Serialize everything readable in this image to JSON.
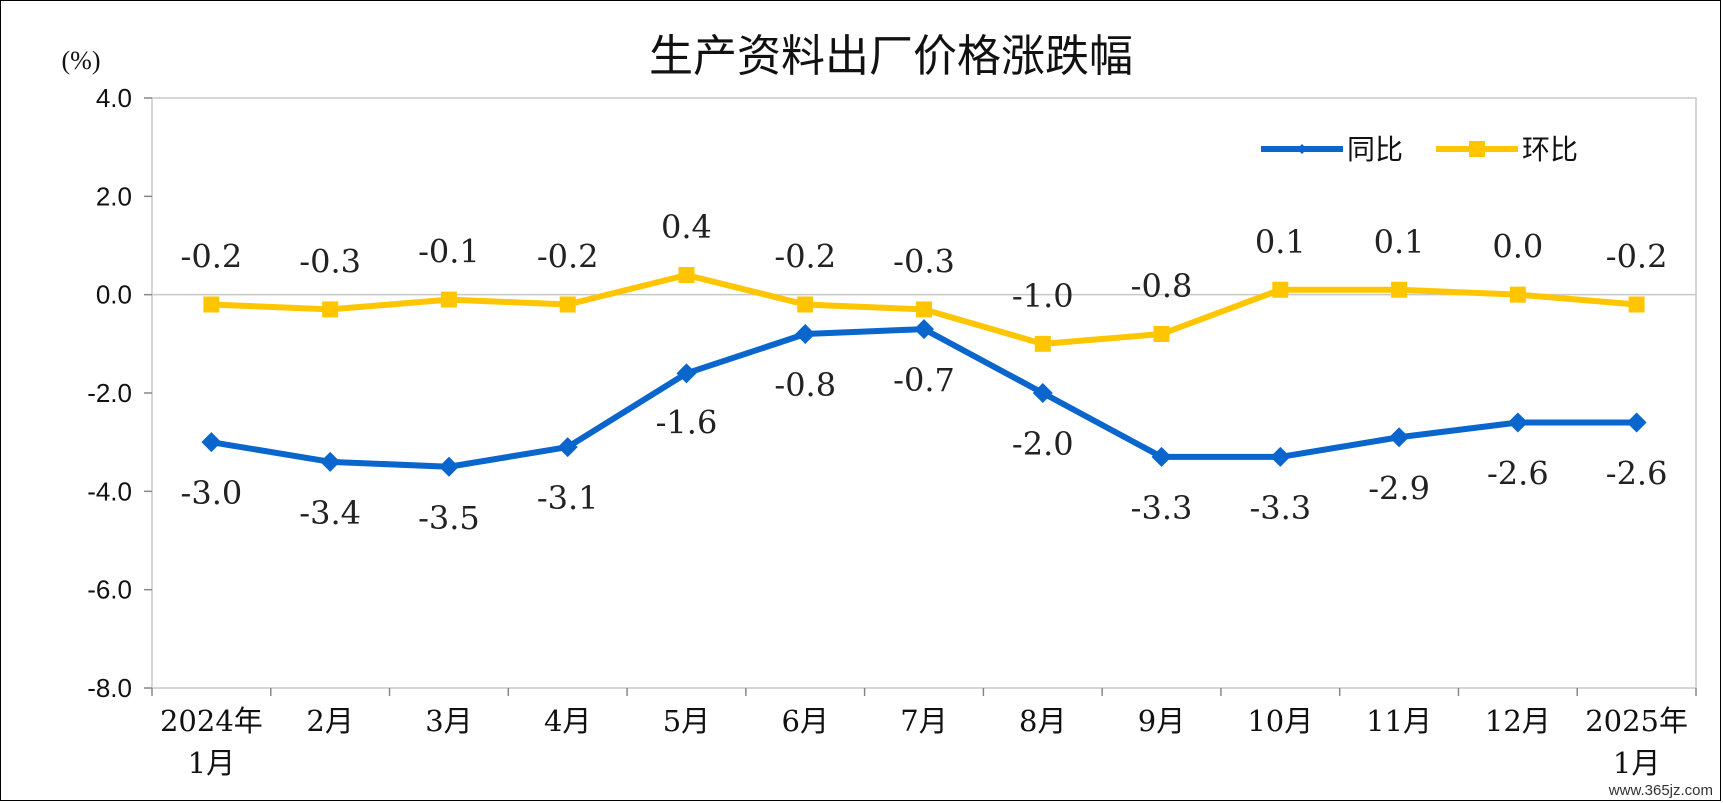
{
  "chart_data": {
    "type": "line",
    "title": "生产资料出厂价格涨跌幅",
    "ylabel": "(%)",
    "ylim": [
      -8.0,
      4.0
    ],
    "yticks": [
      "4.0",
      "2.0",
      "0.0",
      "-2.0",
      "-4.0",
      "-6.0",
      "-8.0"
    ],
    "categories": [
      [
        "2024年",
        "1月"
      ],
      [
        "2月"
      ],
      [
        "3月"
      ],
      [
        "4月"
      ],
      [
        "5月"
      ],
      [
        "6月"
      ],
      [
        "7月"
      ],
      [
        "8月"
      ],
      [
        "9月"
      ],
      [
        "10月"
      ],
      [
        "11月"
      ],
      [
        "12月"
      ],
      [
        "2025年",
        "1月"
      ]
    ],
    "series": [
      {
        "name": "同比",
        "color": "#0A66CC",
        "marker": "diamond",
        "values": [
          -3.0,
          -3.4,
          -3.5,
          -3.1,
          -1.6,
          -0.8,
          -0.7,
          -2.0,
          -3.3,
          -3.3,
          -2.9,
          -2.6,
          -2.6
        ],
        "labels": [
          "-3.0",
          "-3.4",
          "-3.5",
          "-3.1",
          "-1.6",
          "-0.8",
          "-0.7",
          "-2.0",
          "-3.3",
          "-3.3",
          "-2.9",
          "-2.6",
          "-2.6"
        ]
      },
      {
        "name": "环比",
        "color": "#FFC600",
        "marker": "square",
        "values": [
          -0.2,
          -0.3,
          -0.1,
          -0.2,
          0.4,
          -0.2,
          -0.3,
          -1.0,
          -0.8,
          0.1,
          0.1,
          0.0,
          -0.2
        ],
        "labels": [
          "-0.2",
          "-0.3",
          "-0.1",
          "-0.2",
          "0.4",
          "-0.2",
          "-0.3",
          "-1.0",
          "-0.8",
          "0.1",
          "0.1",
          "0.0",
          "-0.2"
        ]
      }
    ],
    "legend_position": "top-right",
    "grid": false,
    "zero_line": true
  },
  "watermark": "www.365jz.com"
}
